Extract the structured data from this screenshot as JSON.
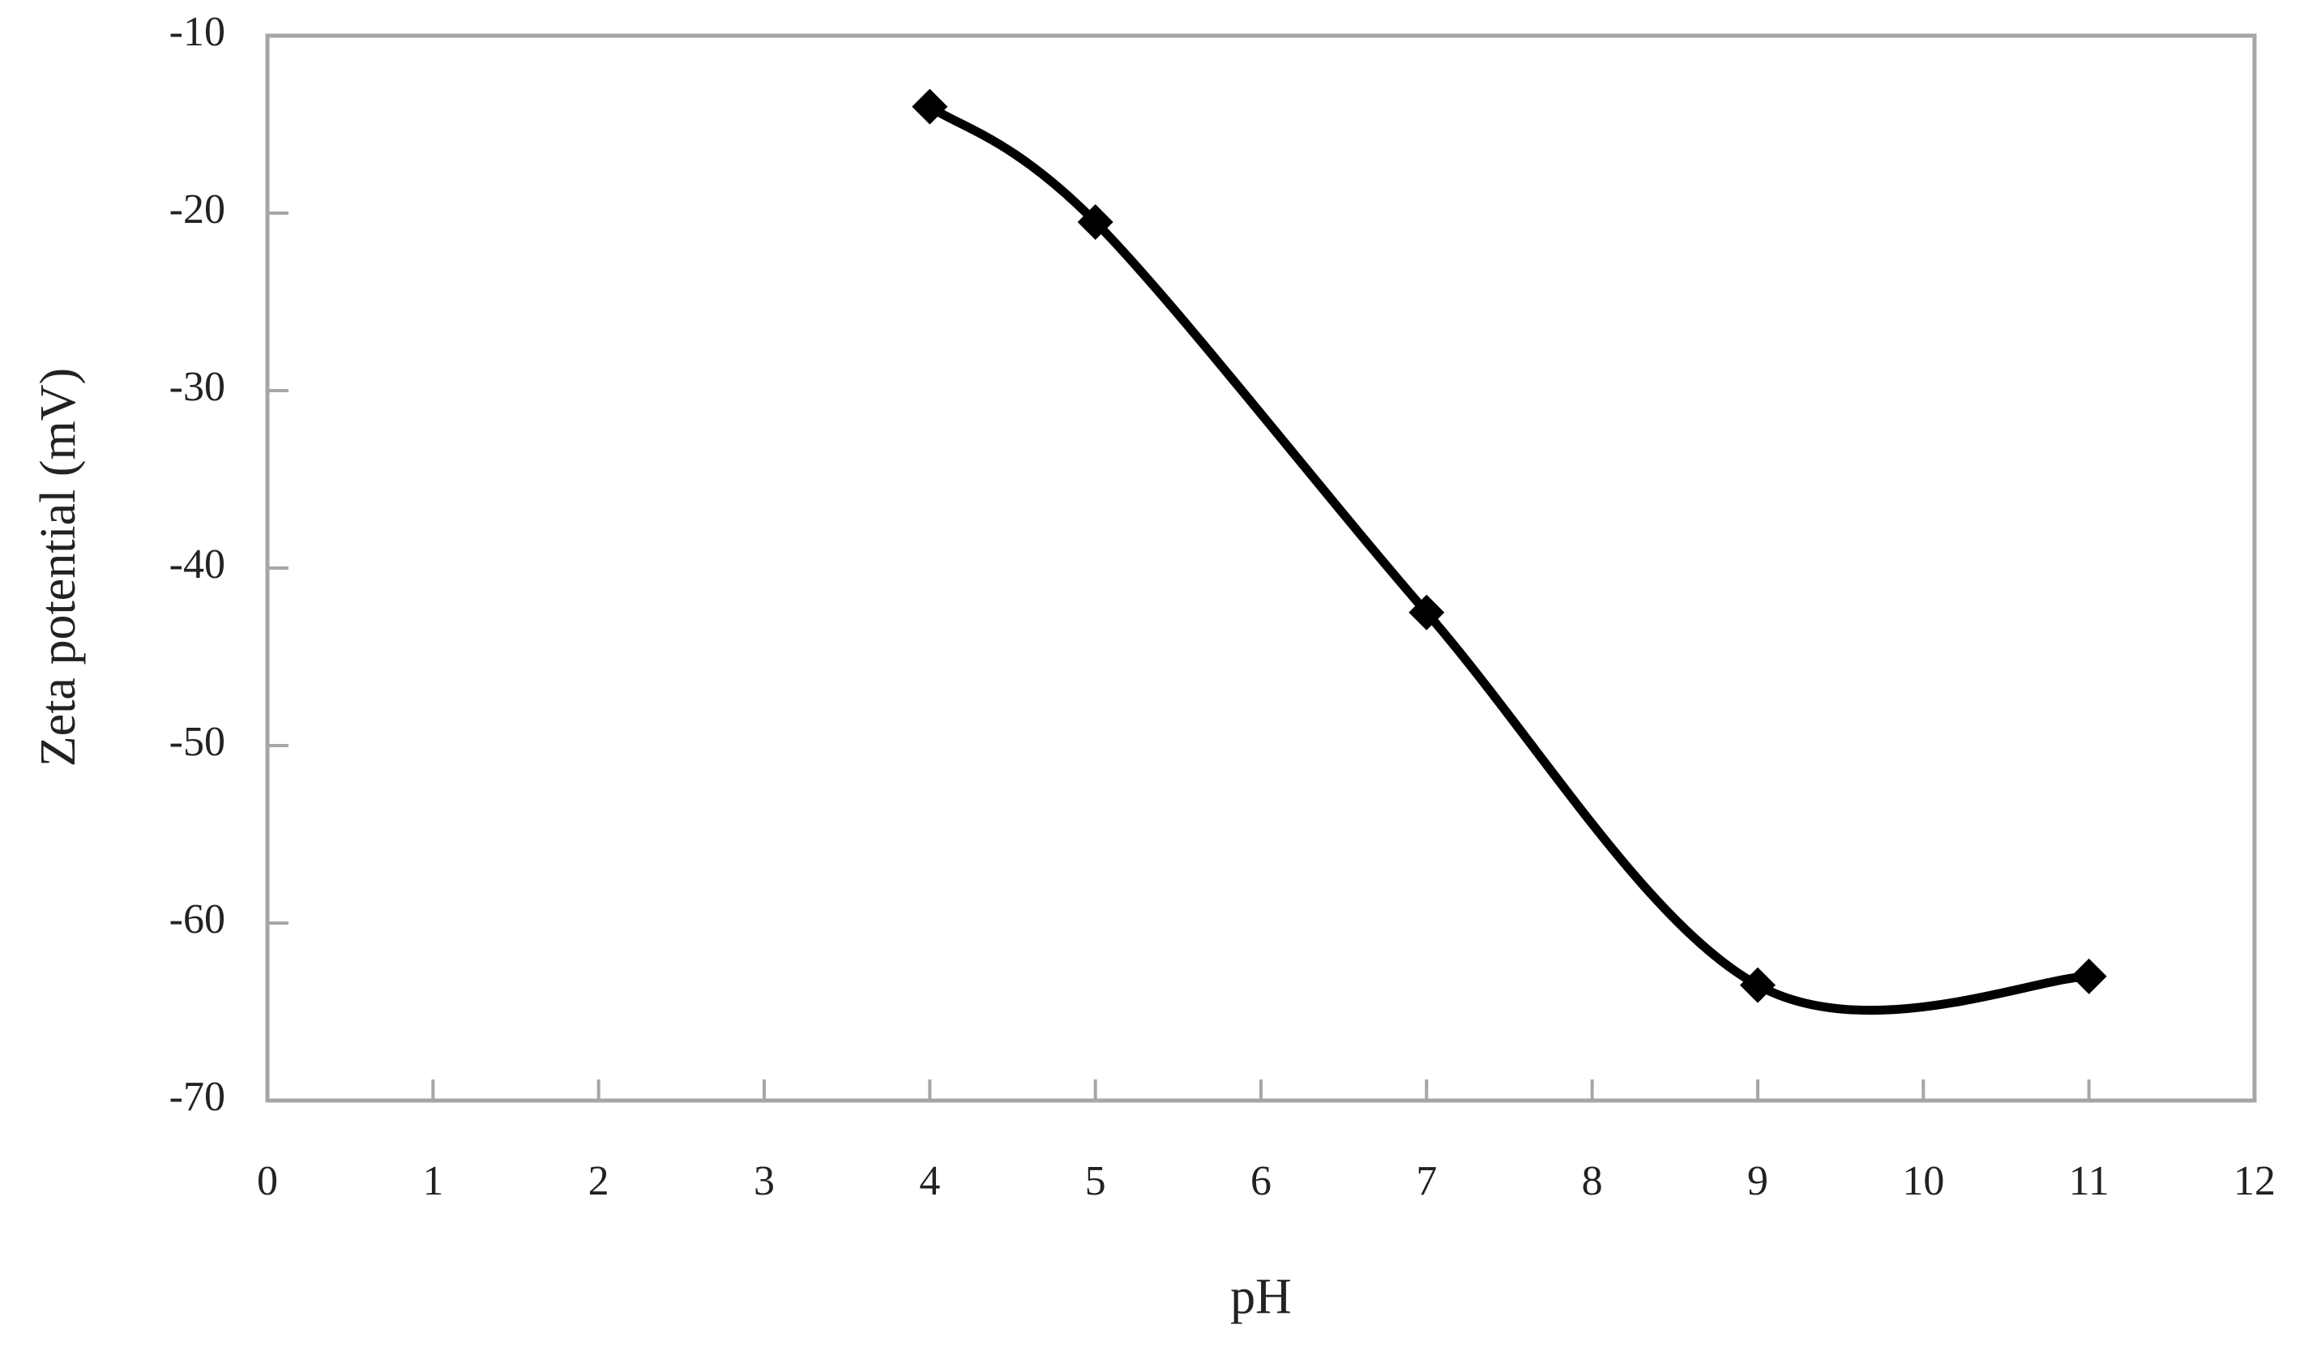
{
  "chart_data": {
    "type": "line",
    "x_label": "pH",
    "y_label": "Zeta potential (mV)",
    "x": [
      4,
      5,
      7,
      9,
      11
    ],
    "series": [
      {
        "color": "#000000",
        "values": [
          -14,
          -20.5,
          -42.5,
          -63.5,
          -63
        ]
      }
    ],
    "xlim": [
      0,
      12
    ],
    "xticks": [
      0,
      1,
      2,
      3,
      4,
      5,
      6,
      7,
      8,
      9,
      10,
      11,
      12
    ],
    "ylim": [
      -70,
      -10
    ],
    "yticks": [
      -70,
      -60,
      -50,
      -40,
      -30,
      -20,
      -10
    ],
    "frame_color": "#a6a6a6",
    "smooth": true,
    "marker": "diamond"
  }
}
